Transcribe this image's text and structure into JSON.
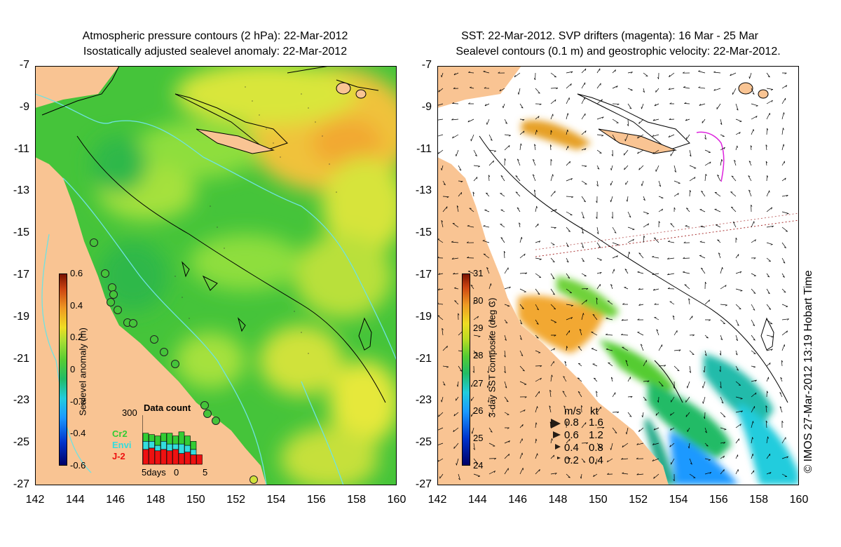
{
  "left_panel": {
    "title_line1": "Atmospheric pressure contours (2 hPa): 22-Mar-2012",
    "title_line2": "Isostatically adjusted sealevel anomaly: 22-Mar-2012",
    "colorbar": {
      "label": "Sealevel anomaly (m)",
      "ticks": [
        "0.6",
        "0.4",
        "0.2",
        "0",
        "-0.2",
        "-0.4",
        "-0.6"
      ]
    },
    "data_count": {
      "title": "Data count",
      "ymax_label": "300",
      "xlabel_left": "5days",
      "xlabel_mid": "0",
      "xlabel_right": "5",
      "legend": [
        {
          "name": "Cr2",
          "color": "#33cc33"
        },
        {
          "name": "Envi",
          "color": "#33dddd"
        },
        {
          "name": "J-2",
          "color": "#ee1111"
        }
      ],
      "bars": [
        {
          "cr2": 0.3,
          "envi": 0.3,
          "j2": 0.55
        },
        {
          "cr2": 0.25,
          "envi": 0.25,
          "j2": 0.6
        },
        {
          "cr2": 0.35,
          "envi": 0.2,
          "j2": 0.5
        },
        {
          "cr2": 0.3,
          "envi": 0.3,
          "j2": 0.55
        },
        {
          "cr2": 0.4,
          "envi": 0.25,
          "j2": 0.5
        },
        {
          "cr2": 0.3,
          "envi": 0.2,
          "j2": 0.55
        },
        {
          "cr2": 0.45,
          "envi": 0.35,
          "j2": 0.4
        },
        {
          "cr2": 0.35,
          "envi": 0.25,
          "j2": 0.45
        },
        {
          "cr2": 0.3,
          "envi": 0.2,
          "j2": 0.35
        },
        {
          "cr2": 0.0,
          "envi": 0.0,
          "j2": 0.35
        }
      ]
    }
  },
  "right_panel": {
    "title_line1": "SST: 22-Mar-2012. SVP drifters (magenta): 16 Mar - 25 Mar",
    "title_line2": "Sealevel contours (0.1 m) and geostrophic velocity: 22-Mar-2012.",
    "colorbar": {
      "label": "3-day SST composite (deg C)",
      "ticks": [
        "31",
        "30",
        "29",
        "28",
        "27",
        "26",
        "25",
        "24"
      ]
    },
    "velocity_legend": {
      "header_ms": "m/s",
      "header_kt": "kt",
      "rows": [
        {
          "ms": "0.8",
          "kt": "1.6"
        },
        {
          "ms": "0.6",
          "kt": "1.2"
        },
        {
          "ms": "0.4",
          "kt": "0.8"
        },
        {
          "ms": "0.2",
          "kt": "0.4"
        }
      ]
    }
  },
  "axes": {
    "x_ticks": [
      "142",
      "144",
      "146",
      "148",
      "150",
      "152",
      "154",
      "156",
      "158",
      "160"
    ],
    "y_ticks": [
      "-7",
      "-9",
      "-11",
      "-13",
      "-15",
      "-17",
      "-19",
      "-21",
      "-23",
      "-25",
      "-27"
    ]
  },
  "credit": "© IMOS 27-Mar-2012 13:19 Hobart Time",
  "colors": {
    "land": "#f9c493",
    "ocean_green": "#45c43a",
    "light_green": "#8ede3c",
    "yellow": "#e6e83a",
    "orange": "#f2a830",
    "cyan_contour": "#6fe2e2",
    "magenta": "#dd22dd"
  }
}
